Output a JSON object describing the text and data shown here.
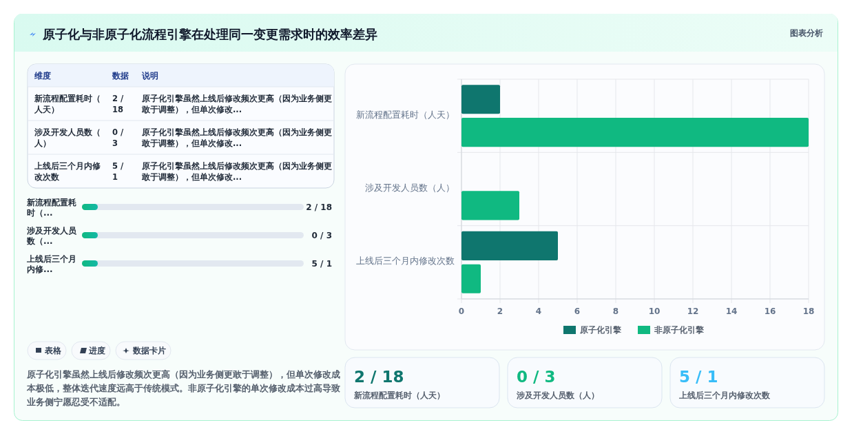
{
  "chart_data": [
    {
      "type": "other",
      "title": "原子化与非原子化流程引擎在处理同一变更需求时的效率差异",
      "subtitle": "图表分析",
      "annotations": [
        "维度",
        "数据",
        "说明",
        "新流程配置耗时（人天）",
        "2 / 18",
        "原子化引擎虽然上线后修改频次更高（因为业务侧更敢于调整），但单次修改...",
        "涉及开发人员数（人）",
        "0 / 3",
        "原子化引擎虽然上线后修改频次更高（因为业务侧更敢于调整），但单次修改...",
        "上线后三个月内修改次数",
        "5 / 1",
        "原子化引擎虽然上线后修改频次更高（因为业务侧更敢于调整），但单次修改...",
        "新流程配置耗时（...",
        "2 / 18",
        "涉及开发人员数（...",
        "0 / 3",
        "上线后三个月内修...",
        "5 / 1",
        "表格",
        "进度",
        "数据卡片",
        "原子化引擎虽然上线后修改频次更高（因为业务侧更敢于调整），但单次修改成本极低，整体迭代速度远高于传统模式。非原子化引擎的单次修改成本过高导致业务侧宁愿忍受不适配。"
      ]
    },
    {
      "type": "bar",
      "orientation": "horizontal",
      "categories": [
        "新流程配置耗时（人天）",
        "涉及开发人员数（人）",
        "上线后三个月内修改次数"
      ],
      "series": [
        {
          "name": "原子化引擎",
          "color": "#0f766e",
          "values": [
            2,
            0,
            5
          ]
        },
        {
          "name": "非原子化引擎",
          "color": "#10b981",
          "values": [
            18,
            3,
            1
          ]
        }
      ],
      "xlim": [
        0,
        18
      ],
      "xticks": [
        0,
        2,
        4,
        6,
        8,
        10,
        12,
        14,
        16,
        18
      ],
      "grid": true,
      "legend": "bottom"
    },
    {
      "type": "other",
      "annotations": [
        "2 / 18",
        "新流程配置耗时（人天）",
        "0 / 3",
        "涉及开发人员数（人）",
        "5 / 1",
        "上线后三个月内修改次数"
      ]
    }
  ]
}
